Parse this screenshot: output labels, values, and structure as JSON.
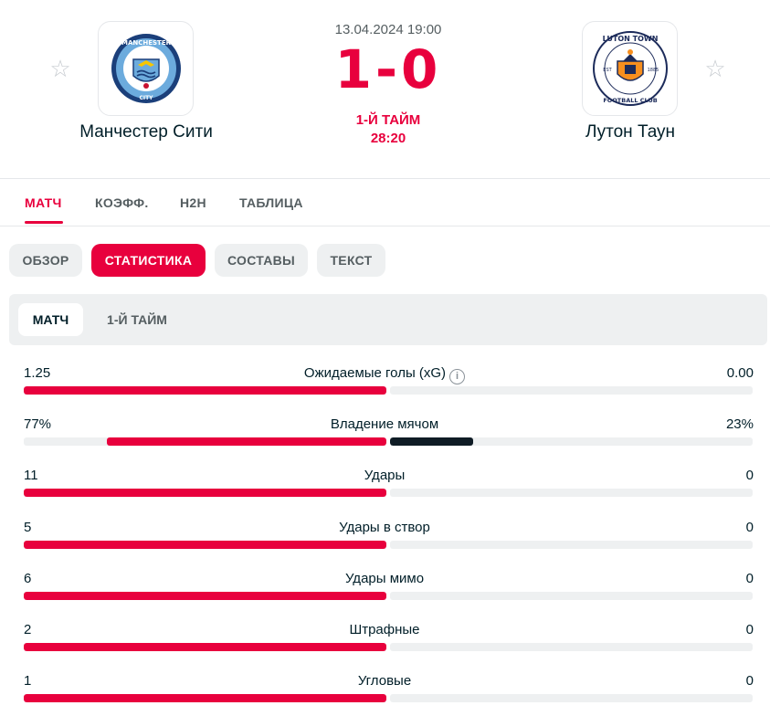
{
  "header": {
    "home_team": "Манчестер Сити",
    "away_team": "Лутон Таун",
    "date": "13.04.2024 19:00",
    "score": "1-0",
    "period": "1-Й ТАЙМ",
    "clock": "28:20",
    "home_logo_text": "MANCHESTER CITY",
    "away_logo_text": "LUTON TOWN FOOTBALL CLUB",
    "icons": {
      "favorite": "star-icon"
    }
  },
  "main_tabs": [
    {
      "label": "МАТЧ",
      "active": true
    },
    {
      "label": "КОЭФФ.",
      "active": false
    },
    {
      "label": "H2H",
      "active": false
    },
    {
      "label": "ТАБЛИЦА",
      "active": false
    }
  ],
  "sub_tabs": [
    {
      "label": "ОБЗОР",
      "active": false
    },
    {
      "label": "СТАТИСТИКА",
      "active": true
    },
    {
      "label": "СОСТАВЫ",
      "active": false
    },
    {
      "label": "ТЕКСТ",
      "active": false
    }
  ],
  "period_filter": [
    {
      "label": "МАТЧ",
      "active": true
    },
    {
      "label": "1-Й ТАЙМ",
      "active": false
    }
  ],
  "stats": [
    {
      "label": "Ожидаемые голы (xG)",
      "home": "1.25",
      "away": "0.00",
      "home_share": 1.0,
      "away_share": 0.0,
      "info": true
    },
    {
      "label": "Владение мячом",
      "home": "77%",
      "away": "23%",
      "home_share": 0.77,
      "away_share": 0.23,
      "info": false
    },
    {
      "label": "Удары",
      "home": "11",
      "away": "0",
      "home_share": 1.0,
      "away_share": 0.0,
      "info": false
    },
    {
      "label": "Удары в створ",
      "home": "5",
      "away": "0",
      "home_share": 1.0,
      "away_share": 0.0,
      "info": false
    },
    {
      "label": "Удары мимо",
      "home": "6",
      "away": "0",
      "home_share": 1.0,
      "away_share": 0.0,
      "info": false
    },
    {
      "label": "Штрафные",
      "home": "2",
      "away": "0",
      "home_share": 1.0,
      "away_share": 0.0,
      "info": false
    },
    {
      "label": "Угловые",
      "home": "1",
      "away": "0",
      "home_share": 1.0,
      "away_share": 0.0,
      "info": false
    }
  ],
  "colors": {
    "accent": "#e8003d",
    "away_bar": "#0f1c25",
    "track": "#eef0f1"
  }
}
